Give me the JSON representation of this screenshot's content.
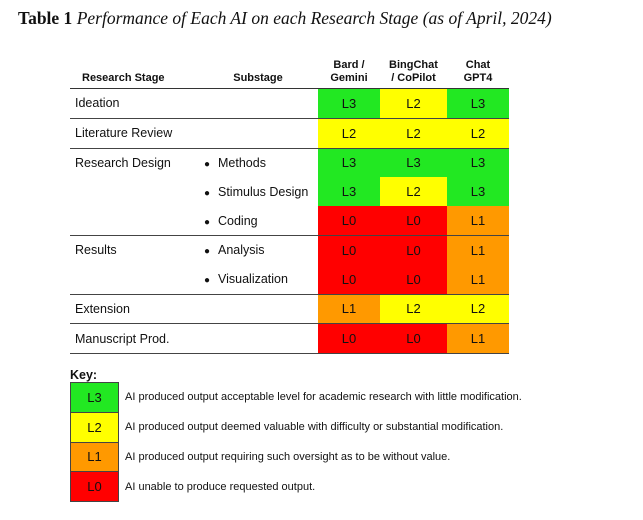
{
  "caption": {
    "label": "Table 1",
    "title": "Performance of Each AI on each Research Stage (as of April, 2024)"
  },
  "colors": {
    "L3": "#22e822",
    "L2": "#ffff00",
    "L1": "#ff9900",
    "L0": "#ff0000"
  },
  "headers": {
    "stage": "Research Stage",
    "substage": "Substage",
    "ai1": "Bard / Gemini",
    "ai1_line1": "Bard /",
    "ai1_line2": "Gemini",
    "ai2_line1": "BingChat",
    "ai2_line2": "/ CoPilot",
    "ai3_line1": "Chat",
    "ai3_line2": "GPT4"
  },
  "rows": [
    {
      "stage": "Ideation",
      "sub": "",
      "vals": [
        "L3",
        "L2",
        "L3"
      ]
    },
    {
      "stage": "Literature Review",
      "sub": "",
      "vals": [
        "L2",
        "L2",
        "L2"
      ]
    },
    {
      "stage": "Research Design",
      "sub": "Methods",
      "vals": [
        "L3",
        "L3",
        "L3"
      ]
    },
    {
      "stage": "",
      "sub": "Stimulus Design",
      "vals": [
        "L3",
        "L2",
        "L3"
      ]
    },
    {
      "stage": "",
      "sub": "Coding",
      "vals": [
        "L0",
        "L0",
        "L1"
      ]
    },
    {
      "stage": "Results",
      "sub": "Analysis",
      "vals": [
        "L0",
        "L0",
        "L1"
      ]
    },
    {
      "stage": "",
      "sub": "Visualization",
      "vals": [
        "L0",
        "L0",
        "L1"
      ]
    },
    {
      "stage": "Extension",
      "sub": "",
      "vals": [
        "L1",
        "L2",
        "L2"
      ]
    },
    {
      "stage": "Manuscript Prod.",
      "sub": "",
      "vals": [
        "L0",
        "L0",
        "L1"
      ]
    }
  ],
  "key": {
    "title": "Key:",
    "items": [
      {
        "level": "L3",
        "desc": "AI produced output acceptable level for academic research with little modification."
      },
      {
        "level": "L2",
        "desc": "AI produced output deemed valuable with difficulty or substantial modification."
      },
      {
        "level": "L1",
        "desc": "AI produced output requiring such oversight as to be without value."
      },
      {
        "level": "L0",
        "desc": "AI unable to produce requested output."
      }
    ]
  }
}
